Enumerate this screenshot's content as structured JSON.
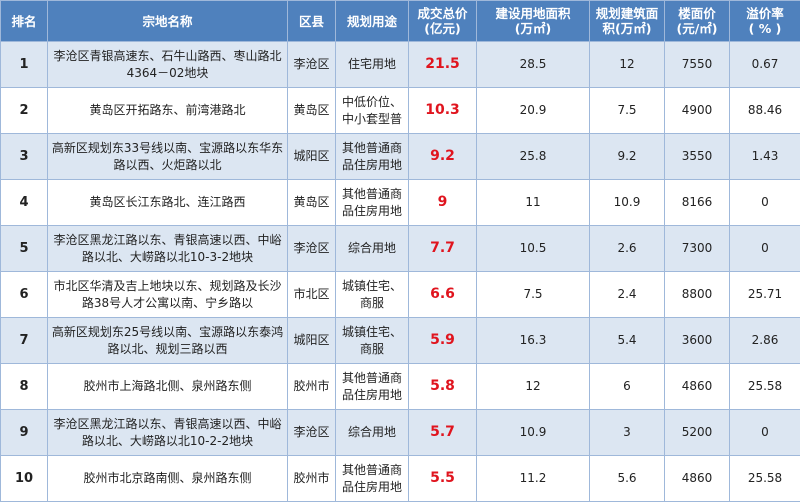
{
  "table": {
    "header": [
      [
        "排名"
      ],
      [
        "宗地名称"
      ],
      [
        "区县"
      ],
      [
        "规划用途"
      ],
      [
        "成交总价",
        "(亿元)"
      ],
      [
        "建设用地面积",
        "(万㎡)"
      ],
      [
        "规划建筑面",
        "积(万㎡)"
      ],
      [
        "楼面价",
        "(元/㎡)"
      ],
      [
        "溢价率",
        "( % )"
      ]
    ],
    "rows": [
      [
        1,
        "李沧区青银高速东、石牛山路西、枣山路北4364－02地块",
        "李沧区",
        "住宅用地",
        21.5,
        28.5,
        12,
        7550,
        0.67
      ],
      [
        2,
        "黄岛区开拓路东、前湾港路北",
        "黄岛区",
        "中低价位、中小套型普",
        10.3,
        20.9,
        7.5,
        4900,
        88.46
      ],
      [
        3,
        "高新区规划东33号线以南、宝源路以东华东路以西、火炬路以北",
        "城阳区",
        "其他普通商品住房用地",
        9.2,
        25.8,
        9.2,
        3550,
        1.43
      ],
      [
        4,
        "黄岛区长江东路北、连江路西",
        "黄岛区",
        "其他普通商品住房用地",
        9,
        11,
        10.9,
        8166,
        0
      ],
      [
        5,
        "李沧区黑龙江路以东、青银高速以西、中峪路以北、大崂路以北10-3-2地块",
        "李沧区",
        "综合用地",
        7.7,
        10.5,
        2.6,
        7300,
        0
      ],
      [
        6,
        "市北区华清及吉上地块以东、规划路及长沙路38号人才公寓以南、宁乡路以",
        "市北区",
        "城镇住宅、商服",
        6.6,
        7.5,
        2.4,
        8800,
        25.71
      ],
      [
        7,
        "高新区规划东25号线以南、宝源路以东泰鸿路以北、规划三路以西",
        "城阳区",
        "城镇住宅、商服",
        5.9,
        16.3,
        5.4,
        3600,
        2.86
      ],
      [
        8,
        "胶州市上海路北侧、泉州路东侧",
        "胶州市",
        "其他普通商品住房用地",
        5.8,
        12,
        6,
        4860,
        25.58
      ],
      [
        9,
        "李沧区黑龙江路以东、青银高速以西、中峪路以北、大崂路以北10-2-2地块",
        "李沧区",
        "综合用地",
        5.7,
        10.9,
        3,
        5200,
        0
      ],
      [
        10,
        "胶州市北京路南侧、泉州路东侧",
        "胶州市",
        "其他普通商品住房用地",
        5.5,
        11.2,
        5.6,
        4860,
        25.58
      ]
    ]
  }
}
